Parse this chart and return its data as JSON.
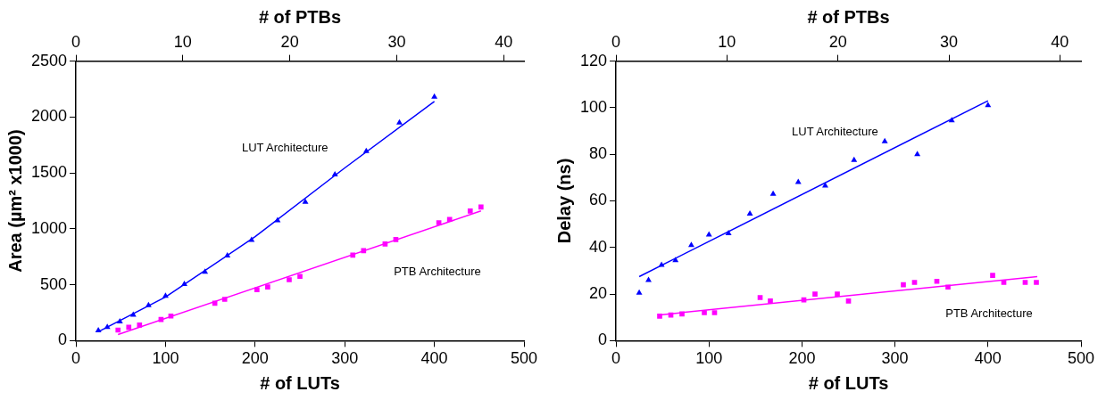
{
  "chart_data": [
    {
      "type": "scatter",
      "xlabel": "# of LUTs",
      "x2label": "# of PTBs",
      "ylabel": "Area (µm² x1000)",
      "xlim": [
        0,
        500
      ],
      "xticks": [
        0,
        100,
        200,
        300,
        400,
        500
      ],
      "x2lim": [
        0,
        41.9
      ],
      "x2ticks": [
        0,
        10,
        20,
        30,
        40
      ],
      "ylim": [
        0,
        2500
      ],
      "yticks": [
        0,
        500,
        1000,
        1500,
        2000,
        2500
      ],
      "grid": false,
      "legend": false,
      "series": [
        {
          "type": "scatter",
          "marker": "triangle",
          "color": "#0000ff",
          "x": [
            25,
            35,
            49,
            64,
            81,
            100,
            121,
            144,
            169,
            196,
            225,
            256,
            289,
            324,
            361,
            400
          ],
          "values": [
            90,
            120,
            170,
            230,
            315,
            400,
            505,
            615,
            760,
            900,
            1075,
            1240,
            1485,
            1695,
            1950,
            2180
          ]
        },
        {
          "type": "scatter",
          "marker": "square",
          "color": "#ff00ff",
          "x": [
            47,
            59,
            71,
            95,
            106,
            155,
            166,
            202,
            214,
            238,
            250,
            309,
            321,
            345,
            357,
            405,
            417,
            440,
            452
          ],
          "values": [
            95,
            120,
            140,
            190,
            220,
            335,
            370,
            455,
            480,
            545,
            575,
            765,
            805,
            865,
            905,
            1055,
            1085,
            1160,
            1195
          ]
        },
        {
          "type": "line",
          "name": "LUT Architecture",
          "marker": "none",
          "color": "#0000ff",
          "x": [
            25,
            100,
            200,
            300,
            400
          ],
          "values": [
            80,
            390,
            930,
            1545,
            2140
          ]
        },
        {
          "type": "line",
          "name": "PTB Architecture",
          "marker": "none",
          "color": "#ff00ff",
          "x": [
            47,
            452
          ],
          "values": [
            55,
            1160
          ]
        }
      ]
    },
    {
      "type": "scatter",
      "xlabel": "# of LUTs",
      "x2label": "# of PTBs",
      "ylabel": "Delay (ns)",
      "xlim": [
        0,
        500
      ],
      "xticks": [
        0,
        100,
        200,
        300,
        400,
        500
      ],
      "x2lim": [
        0,
        41.9
      ],
      "x2ticks": [
        0,
        10,
        20,
        30,
        40
      ],
      "ylim": [
        0,
        120
      ],
      "yticks": [
        0,
        20,
        40,
        60,
        80,
        100,
        120
      ],
      "grid": false,
      "legend": false,
      "series": [
        {
          "type": "scatter",
          "marker": "triangle",
          "color": "#0000ff",
          "x": [
            25,
            35,
            49,
            64,
            81,
            100,
            121,
            144,
            169,
            196,
            225,
            256,
            289,
            324,
            361,
            400
          ],
          "values": [
            20.5,
            26,
            32.5,
            34.5,
            41,
            45.5,
            46,
            54.5,
            63,
            68,
            66.5,
            77.5,
            85.5,
            80,
            94.5,
            101
          ]
        },
        {
          "type": "scatter",
          "marker": "square",
          "color": "#ff00ff",
          "x": [
            47,
            59,
            71,
            95,
            106,
            155,
            166,
            202,
            214,
            238,
            250,
            309,
            321,
            345,
            357,
            405,
            417,
            440,
            452
          ],
          "values": [
            10.5,
            11,
            11.5,
            12,
            12,
            18.5,
            17,
            17.5,
            20,
            20,
            17,
            24,
            25,
            25.5,
            23,
            28,
            25,
            25,
            25
          ]
        },
        {
          "type": "line",
          "name": "LUT Architecture",
          "marker": "none",
          "color": "#0000ff",
          "x": [
            25,
            400
          ],
          "values": [
            27.5,
            103
          ]
        },
        {
          "type": "line",
          "name": "PTB Architecture",
          "marker": "none",
          "color": "#ff00ff",
          "x": [
            45,
            453
          ],
          "values": [
            11,
            27.5
          ]
        }
      ]
    }
  ]
}
